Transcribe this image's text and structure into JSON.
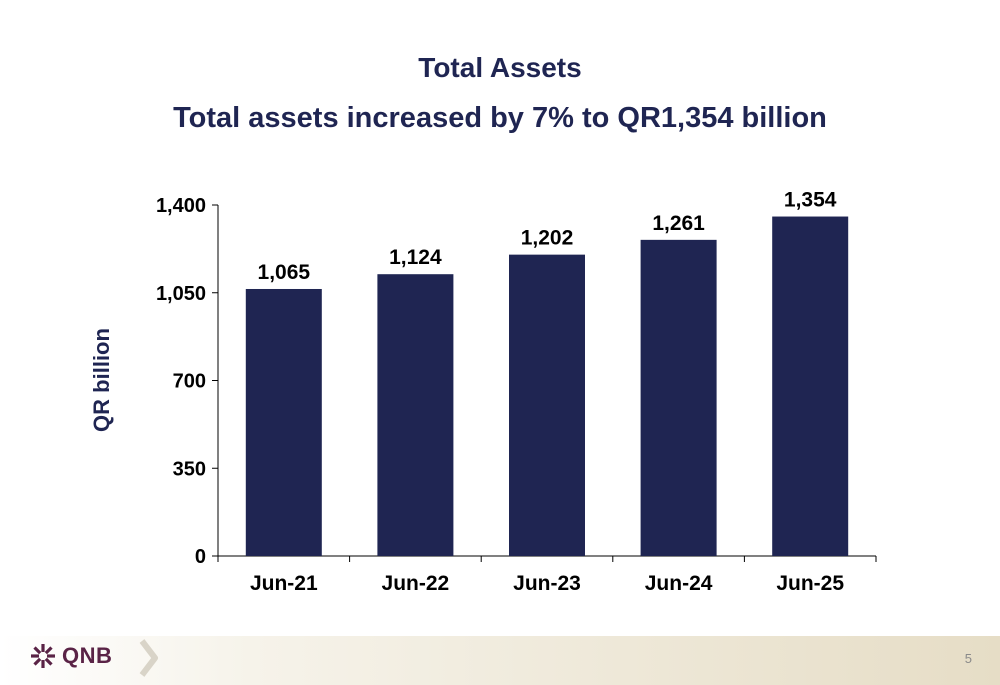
{
  "header": {
    "title": "Total Assets",
    "subtitle": "Total assets increased by 7% to QR1,354 billion"
  },
  "chart_data": {
    "type": "bar",
    "title": "Total Assets",
    "subtitle": "Total assets increased by 7% to QR1,354 billion",
    "categories": [
      "Jun-21",
      "Jun-22",
      "Jun-23",
      "Jun-24",
      "Jun-25"
    ],
    "values": [
      1065,
      1124,
      1202,
      1261,
      1354
    ],
    "value_labels": [
      "1,065",
      "1,124",
      "1,202",
      "1,261",
      "1,354"
    ],
    "xlabel": "",
    "ylabel": "QR billion",
    "ylim": [
      0,
      1400
    ],
    "yticks": [
      0,
      350,
      700,
      1050,
      1400
    ],
    "ytick_labels": [
      "0",
      "350",
      "700",
      "1,050",
      "1,400"
    ],
    "grid": false,
    "bar_color": "#1f2552"
  },
  "footer": {
    "logo_text": "QNB",
    "page_number": "5"
  },
  "colors": {
    "title": "#1f2552",
    "bar": "#1f2552",
    "logo": "#5a2346"
  }
}
